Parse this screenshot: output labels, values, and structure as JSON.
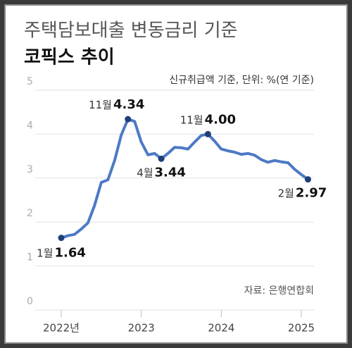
{
  "chart_data": {
    "type": "line",
    "title": "주택담보대출 변동금리 기준",
    "subtitle": "코픽스 추이",
    "unit_note": "신규취급액 기준, 단위: %(연 기준)",
    "source": "자료: 은행연합회",
    "categories": [
      "2022년",
      null,
      null,
      null,
      null,
      null,
      null,
      null,
      null,
      null,
      null,
      null,
      "2023",
      null,
      null,
      null,
      null,
      null,
      null,
      null,
      null,
      null,
      null,
      null,
      "2024",
      null,
      null,
      null,
      null,
      null,
      null,
      null,
      null,
      null,
      null,
      null,
      "2025",
      null
    ],
    "series": [
      {
        "name": "코픽스",
        "color": "#4d79c7",
        "point_color": "#1f3f78",
        "values": [
          1.64,
          1.69,
          1.72,
          1.84,
          1.98,
          2.38,
          2.9,
          2.96,
          3.4,
          3.98,
          4.34,
          4.29,
          3.82,
          3.53,
          3.56,
          3.44,
          3.56,
          3.7,
          3.69,
          3.66,
          3.82,
          3.97,
          4.0,
          3.84,
          3.66,
          3.62,
          3.59,
          3.54,
          3.56,
          3.52,
          3.42,
          3.36,
          3.4,
          3.37,
          3.35,
          3.2,
          3.08,
          2.97
        ],
        "month_labels": [
          "1월",
          null,
          null,
          null,
          null,
          null,
          null,
          null,
          null,
          null,
          "11월",
          null,
          null,
          null,
          null,
          "4월",
          null,
          null,
          null,
          null,
          null,
          null,
          "11월",
          null,
          null,
          null,
          null,
          null,
          null,
          null,
          null,
          null,
          null,
          null,
          null,
          null,
          null,
          "2월"
        ],
        "value_labels": [
          "1.64",
          null,
          null,
          null,
          null,
          null,
          null,
          null,
          null,
          null,
          "4.34",
          null,
          null,
          null,
          null,
          "3.44",
          null,
          null,
          null,
          null,
          null,
          null,
          "4.00",
          null,
          null,
          null,
          null,
          null,
          null,
          null,
          null,
          null,
          null,
          null,
          null,
          null,
          null,
          "2.97"
        ]
      }
    ],
    "ylim": [
      0,
      5
    ],
    "yticks": [
      0,
      1,
      2,
      3,
      4,
      5
    ],
    "grid": true
  }
}
